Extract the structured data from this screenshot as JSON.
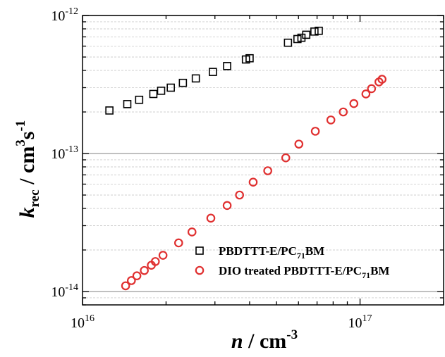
{
  "chart_data": {
    "type": "scatter",
    "title": "",
    "x_scale": "log",
    "y_scale": "log",
    "xlim": [
      1e+16,
      2e+17
    ],
    "ylim": [
      8e-15,
      1e-12
    ],
    "grid": {
      "major": true,
      "minor": true,
      "axis": "y"
    },
    "legend_position": "bottom-right",
    "xlabel": {
      "symbol": "n",
      "unit": "cm",
      "unit_exponent": "-3"
    },
    "ylabel": {
      "symbol": "k",
      "subscript": "rec",
      "unit_part1": "cm",
      "unit_exp1": "3",
      "unit_part2": "s",
      "unit_exp2": "-1"
    },
    "x_ticks": [
      {
        "value": 1e+16,
        "base": "10",
        "exponent": "16"
      },
      {
        "value": 1e+17,
        "base": "10",
        "exponent": "17"
      }
    ],
    "y_ticks": [
      {
        "value": 1e-14,
        "base": "10",
        "exponent": "-14"
      },
      {
        "value": 1e-13,
        "base": "10",
        "exponent": "-13"
      },
      {
        "value": 1e-12,
        "base": "10",
        "exponent": "-12"
      }
    ],
    "series": [
      {
        "name_parts": [
          "PBDTTT-E/PC",
          "71",
          "BM"
        ],
        "marker": "square",
        "color": "#000000",
        "x": [
          1.25e+16,
          1.45e+16,
          1.6e+16,
          1.8e+16,
          1.92e+16,
          2.08e+16,
          2.3e+16,
          2.56e+16,
          2.95e+16,
          3.32e+16,
          3.88e+16,
          4e+16,
          5.5e+16,
          5.95e+16,
          6.15e+16,
          6.4e+16,
          6.85e+16,
          7.1e+16
        ],
        "y": [
          2.05e-13,
          2.28e-13,
          2.45e-13,
          2.7e-13,
          2.85e-13,
          3e-13,
          3.25e-13,
          3.5e-13,
          3.9e-13,
          4.3e-13,
          4.8e-13,
          4.9e-13,
          6.35e-13,
          6.75e-13,
          6.9e-13,
          7.25e-13,
          7.65e-13,
          7.75e-13
        ]
      },
      {
        "name_parts": [
          "DIO treated PBDTTT-E/PC",
          "71",
          "BM"
        ],
        "marker": "circle",
        "color": "#e03030",
        "x": [
          1.43e+16,
          1.5e+16,
          1.57e+16,
          1.67e+16,
          1.77e+16,
          1.83e+16,
          1.95e+16,
          2.22e+16,
          2.48e+16,
          2.9e+16,
          3.32e+16,
          3.68e+16,
          4.12e+16,
          4.65e+16,
          5.4e+16,
          6.02e+16,
          6.9e+16,
          7.85e+16,
          8.7e+16,
          9.5e+16,
          1.05e+17,
          1.1e+17,
          1.17e+17,
          1.2e+17
        ],
        "y": [
          1.1e-14,
          1.2e-14,
          1.3e-14,
          1.42e-14,
          1.55e-14,
          1.65e-14,
          1.83e-14,
          2.25e-14,
          2.7e-14,
          3.4e-14,
          4.2e-14,
          5e-14,
          6.2e-14,
          7.5e-14,
          9.3e-14,
          1.17e-13,
          1.45e-13,
          1.75e-13,
          2e-13,
          2.3e-13,
          2.7e-13,
          2.95e-13,
          3.3e-13,
          3.45e-13
        ]
      }
    ]
  }
}
